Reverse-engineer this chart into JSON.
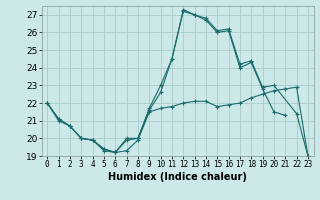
{
  "title": "",
  "xlabel": "Humidex (Indice chaleur)",
  "ylabel": "",
  "background_color": "#cce8e8",
  "line_color": "#1a6b6b",
  "grid_color": "#aacccc",
  "xlim": [
    -0.5,
    23.5
  ],
  "ylim": [
    19,
    27.5
  ],
  "yticks": [
    19,
    20,
    21,
    22,
    23,
    24,
    25,
    26,
    27
  ],
  "xticks": [
    0,
    1,
    2,
    3,
    4,
    5,
    6,
    7,
    8,
    9,
    10,
    11,
    12,
    13,
    14,
    15,
    16,
    17,
    18,
    19,
    20,
    21,
    22,
    23
  ],
  "series": [
    {
      "x": [
        0,
        1,
        2,
        3,
        4,
        5,
        6,
        7,
        8,
        9,
        10,
        11,
        12,
        13,
        14,
        15,
        16,
        17,
        18,
        19,
        20,
        21,
        22,
        23
      ],
      "y": [
        22.0,
        21.0,
        20.7,
        20.0,
        19.9,
        19.3,
        19.2,
        19.3,
        19.9,
        21.5,
        21.7,
        21.8,
        22.0,
        22.1,
        22.1,
        21.8,
        21.9,
        22.0,
        22.3,
        22.5,
        22.7,
        22.8,
        22.9,
        19.0
      ]
    },
    {
      "x": [
        0,
        1,
        2,
        3,
        4,
        5,
        6,
        7,
        8,
        9,
        10,
        11,
        12,
        13,
        14,
        15,
        16,
        17,
        18,
        19,
        20,
        21
      ],
      "y": [
        22.0,
        21.1,
        20.7,
        20.0,
        19.9,
        19.4,
        19.2,
        19.9,
        20.0,
        21.6,
        22.6,
        24.5,
        27.2,
        27.0,
        26.7,
        26.0,
        26.1,
        24.0,
        24.3,
        22.8,
        21.5,
        21.3
      ]
    },
    {
      "x": [
        0,
        1,
        2,
        3,
        4,
        5,
        6,
        7,
        8,
        9,
        10,
        11,
        12,
        13,
        14,
        15,
        16,
        17,
        18,
        19,
        20,
        22,
        23
      ],
      "y": [
        22.0,
        21.1,
        20.7,
        20.0,
        19.9,
        19.4,
        19.2,
        20.0,
        20.0,
        21.7,
        23.0,
        24.5,
        27.3,
        27.0,
        26.8,
        26.1,
        26.2,
        24.2,
        24.4,
        22.9,
        23.0,
        21.4,
        19.0
      ]
    }
  ]
}
